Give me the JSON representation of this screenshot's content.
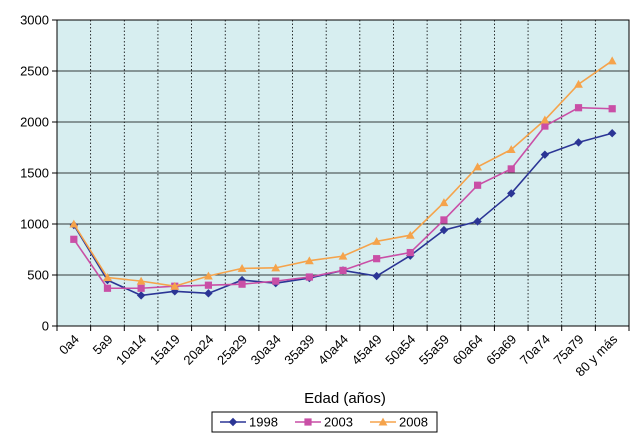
{
  "chart_data": {
    "type": "line",
    "xlabel": "Edad (años)",
    "ylabel": "",
    "ylim": [
      0,
      3000
    ],
    "yticks": [
      0,
      500,
      1000,
      1500,
      2000,
      2500,
      3000
    ],
    "grid": true,
    "legend_position": "bottom",
    "plot_background": "#d7eef0",
    "categories": [
      "0a4",
      "5a9",
      "10a14",
      "15a19",
      "20a24",
      "25a29",
      "30a34",
      "35a39",
      "40a44",
      "45a49",
      "50a54",
      "55a59",
      "60a64",
      "65a69",
      "70a74",
      "75a79",
      "80 y más"
    ],
    "series": [
      {
        "name": "1998",
        "color": "#2b3595",
        "marker": "diamond",
        "values": [
          990,
          450,
          300,
          340,
          320,
          450,
          420,
          470,
          545,
          490,
          690,
          940,
          1025,
          1300,
          1680,
          1800,
          1890
        ]
      },
      {
        "name": "2003",
        "color": "#c94fa6",
        "marker": "square",
        "values": [
          850,
          370,
          370,
          390,
          400,
          410,
          440,
          480,
          545,
          660,
          720,
          1040,
          1380,
          1540,
          1960,
          2140,
          2130
        ]
      },
      {
        "name": "2008",
        "color": "#f5a34b",
        "marker": "triangle",
        "values": [
          1000,
          475,
          440,
          390,
          490,
          565,
          570,
          640,
          685,
          830,
          890,
          1210,
          1560,
          1730,
          2020,
          2370,
          2600
        ]
      }
    ]
  }
}
